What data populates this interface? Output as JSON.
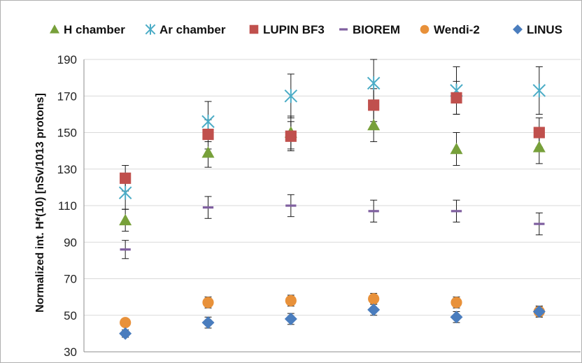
{
  "chart_data": {
    "type": "scatter",
    "title": "",
    "xlabel": "",
    "ylabel": "Normalized int. H*(10) [nSv/1013 protons]",
    "ylim": [
      30,
      190
    ],
    "yticks": [
      30,
      50,
      70,
      90,
      110,
      130,
      150,
      170,
      190
    ],
    "x": [
      1,
      2,
      3,
      4,
      5,
      6
    ],
    "grid": "horizontal",
    "legend_position": "top",
    "series": [
      {
        "name": "H chamber",
        "marker": "triangle",
        "color": "#77A03A",
        "values": [
          102,
          139,
          150,
          154,
          141,
          142
        ],
        "err": [
          6,
          8,
          9,
          9,
          9,
          9
        ]
      },
      {
        "name": "Ar chamber",
        "marker": "asterisk",
        "color": "#4BACC6",
        "values": [
          117,
          156,
          170,
          177,
          173,
          173
        ],
        "err": [
          9,
          11,
          12,
          13,
          13,
          13
        ]
      },
      {
        "name": "LUPIN BF3",
        "marker": "square",
        "color": "#C0504D",
        "values": [
          125,
          149,
          148,
          165,
          169,
          150
        ],
        "err": [
          7,
          8,
          8,
          9,
          9,
          8
        ]
      },
      {
        "name": "BIOREM",
        "marker": "dash",
        "color": "#7F5F9F",
        "values": [
          86,
          109,
          110,
          107,
          107,
          100
        ],
        "err": [
          5,
          6,
          6,
          6,
          6,
          6
        ]
      },
      {
        "name": "Wendi-2",
        "marker": "circle",
        "color": "#E8913A",
        "values": [
          46,
          57,
          58,
          59,
          57,
          52
        ],
        "err": [
          2,
          3,
          3,
          3,
          3,
          3
        ]
      },
      {
        "name": "LINUS",
        "marker": "diamond",
        "color": "#4A7DBE",
        "values": [
          40,
          46,
          48,
          53,
          49,
          52
        ],
        "err": [
          2,
          3,
          3,
          3,
          3,
          3
        ]
      }
    ]
  }
}
